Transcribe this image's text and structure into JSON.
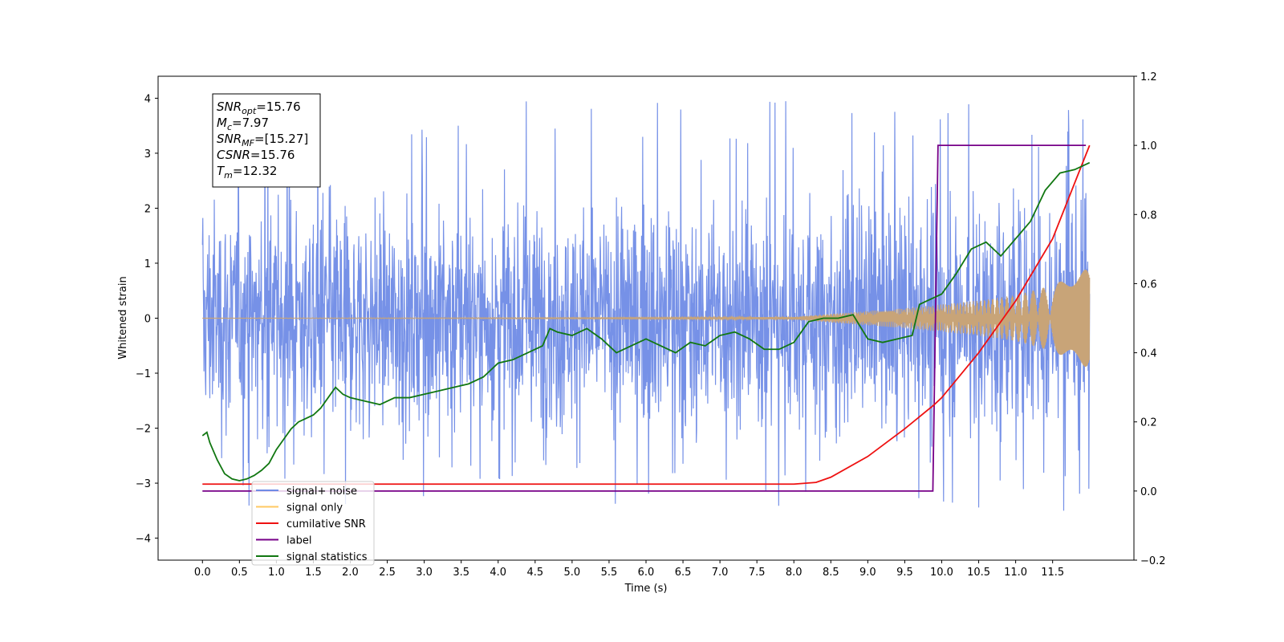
{
  "chart_data": {
    "type": "line",
    "xlabel": "Time (s)",
    "ylabel": "Whitened strain",
    "xlim": [
      -0.6,
      12.6
    ],
    "ylim": [
      -4.4,
      4.4
    ],
    "y2lim": [
      -0.2,
      1.2
    ],
    "x_ticks": [
      "0.0",
      "0.5",
      "1.0",
      "1.5",
      "2.0",
      "2.5",
      "3.0",
      "3.5",
      "4.0",
      "4.5",
      "5.0",
      "5.5",
      "6.0",
      "6.5",
      "7.0",
      "7.5",
      "8.0",
      "8.5",
      "9.0",
      "9.5",
      "10.0",
      "10.5",
      "11.0",
      "11.5"
    ],
    "y_ticks": [
      "4",
      "3",
      "2",
      "1",
      "0",
      "−1",
      "−2",
      "−3",
      "−4"
    ],
    "y2_ticks": [
      "1.2",
      "1.0",
      "0.8",
      "0.6",
      "0.4",
      "0.2",
      "0.0",
      "−0.2"
    ],
    "legend_position": "lower-left",
    "colors": {
      "signal_noise": "#6f8be6",
      "signal_only": "#c8a478",
      "cumulative_snr": "#ee1111",
      "label": "#770088",
      "signal_statistics": "#117711"
    },
    "annotation": {
      "lines": [
        {
          "name": "SNR",
          "sub": "opt",
          "value": "=15.76"
        },
        {
          "name": "M",
          "sub": "c",
          "value": "=7.97"
        },
        {
          "name": "SNR",
          "sub": "MF",
          "value": "=[15.27]"
        },
        {
          "name": "CSNR",
          "sub": "",
          "value": "=15.76"
        },
        {
          "name": "T",
          "sub": "m",
          "value": "=12.32"
        }
      ]
    },
    "series": [
      {
        "name": "signal+ noise",
        "axis": "left",
        "style": "noise-band",
        "typical_amplitude": 2.5,
        "peak_range": [
          -3.5,
          4.1
        ]
      },
      {
        "name": "signal only",
        "axis": "left",
        "style": "chirp-envelope",
        "envelope": {
          "x": [
            0.0,
            8.0,
            8.5,
            9.0,
            9.5,
            10.0,
            10.5,
            11.0,
            11.5,
            12.0
          ],
          "y": [
            0.0,
            0.02,
            0.08,
            0.13,
            0.18,
            0.25,
            0.32,
            0.42,
            0.6,
            0.92
          ]
        }
      },
      {
        "name": "cumilative SNR",
        "axis": "right",
        "x": [
          0.0,
          8.0,
          8.3,
          8.5,
          9.0,
          9.5,
          9.9,
          10.0,
          10.5,
          11.0,
          11.5,
          12.0
        ],
        "y": [
          0.02,
          0.02,
          0.025,
          0.04,
          0.1,
          0.18,
          0.25,
          0.27,
          0.4,
          0.55,
          0.73,
          1.0
        ]
      },
      {
        "name": "label",
        "axis": "right",
        "x": [
          0.0,
          9.88,
          9.95,
          11.95
        ],
        "y": [
          0.0,
          0.0,
          1.0,
          1.0
        ]
      },
      {
        "name": "signal statistics",
        "axis": "right",
        "x": [
          0.0,
          0.06,
          0.1,
          0.2,
          0.3,
          0.4,
          0.5,
          0.6,
          0.7,
          0.8,
          0.9,
          1.0,
          1.1,
          1.2,
          1.3,
          1.4,
          1.5,
          1.6,
          1.7,
          1.8,
          1.9,
          2.0,
          2.2,
          2.4,
          2.6,
          2.8,
          3.0,
          3.2,
          3.4,
          3.6,
          3.8,
          4.0,
          4.2,
          4.4,
          4.6,
          4.7,
          4.8,
          5.0,
          5.2,
          5.4,
          5.6,
          5.8,
          6.0,
          6.2,
          6.4,
          6.6,
          6.8,
          7.0,
          7.2,
          7.4,
          7.6,
          7.8,
          8.0,
          8.2,
          8.4,
          8.6,
          8.8,
          9.0,
          9.2,
          9.4,
          9.6,
          9.7,
          9.8,
          9.9,
          10.0,
          10.2,
          10.4,
          10.6,
          10.8,
          11.0,
          11.2,
          11.4,
          11.6,
          11.8,
          12.0
        ],
        "y": [
          0.16,
          0.17,
          0.14,
          0.09,
          0.05,
          0.035,
          0.03,
          0.035,
          0.045,
          0.06,
          0.08,
          0.12,
          0.15,
          0.18,
          0.2,
          0.21,
          0.22,
          0.24,
          0.27,
          0.3,
          0.28,
          0.27,
          0.26,
          0.25,
          0.27,
          0.27,
          0.28,
          0.29,
          0.3,
          0.31,
          0.33,
          0.37,
          0.38,
          0.4,
          0.42,
          0.47,
          0.46,
          0.45,
          0.47,
          0.44,
          0.4,
          0.42,
          0.44,
          0.42,
          0.4,
          0.43,
          0.42,
          0.45,
          0.46,
          0.44,
          0.41,
          0.41,
          0.43,
          0.49,
          0.5,
          0.5,
          0.51,
          0.44,
          0.43,
          0.44,
          0.45,
          0.54,
          0.55,
          0.56,
          0.57,
          0.63,
          0.7,
          0.72,
          0.68,
          0.73,
          0.78,
          0.87,
          0.92,
          0.93,
          0.95
        ]
      }
    ]
  }
}
